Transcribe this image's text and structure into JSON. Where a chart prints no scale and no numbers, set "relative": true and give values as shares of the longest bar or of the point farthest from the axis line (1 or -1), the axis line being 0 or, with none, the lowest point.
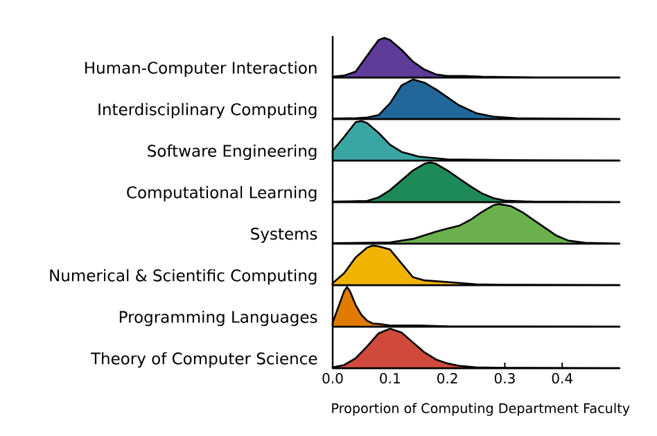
{
  "chart_data": [
    {
      "type": "area",
      "relative": true,
      "ylabel": "Human-Computer Interaction",
      "color": "#5e3c99",
      "xlim": [
        0,
        0.5
      ],
      "tick_labels": false,
      "x": [
        0,
        0.02,
        0.04,
        0.06,
        0.08,
        0.09,
        0.1,
        0.12,
        0.14,
        0.16,
        0.18,
        0.2,
        0.23,
        0.26,
        0.3,
        0.35,
        0.4,
        0.5
      ],
      "values": [
        0.02,
        0.05,
        0.15,
        0.55,
        0.95,
        1,
        0.95,
        0.7,
        0.4,
        0.2,
        0.08,
        0.04,
        0.04,
        0.02,
        0.01,
        0,
        0,
        0
      ]
    },
    {
      "type": "area",
      "relative": true,
      "ylabel": "Interdisciplinary Computing",
      "color": "#21679a",
      "xlim": [
        0,
        0.5
      ],
      "tick_labels": false,
      "x": [
        0,
        0.04,
        0.06,
        0.08,
        0.1,
        0.12,
        0.14,
        0.16,
        0.18,
        0.2,
        0.22,
        0.25,
        0.28,
        0.32,
        0.4,
        0.5
      ],
      "values": [
        0.01,
        0.02,
        0.04,
        0.1,
        0.4,
        0.85,
        1,
        0.92,
        0.75,
        0.55,
        0.35,
        0.15,
        0.06,
        0.02,
        0.01,
        0
      ]
    },
    {
      "type": "area",
      "relative": true,
      "ylabel": "Software Engineering",
      "color": "#3aa6a3",
      "xlim": [
        0,
        0.5
      ],
      "tick_labels": false,
      "x": [
        0,
        0.02,
        0.04,
        0.05,
        0.06,
        0.08,
        0.1,
        0.12,
        0.15,
        0.2,
        0.3,
        0.5
      ],
      "values": [
        0.25,
        0.6,
        0.97,
        1,
        0.95,
        0.7,
        0.4,
        0.22,
        0.1,
        0.03,
        0.01,
        0
      ]
    },
    {
      "type": "area",
      "relative": true,
      "ylabel": "Computational Learning",
      "color": "#1e8a5a",
      "xlim": [
        0,
        0.5
      ],
      "tick_labels": false,
      "x": [
        0,
        0.06,
        0.08,
        0.1,
        0.12,
        0.14,
        0.16,
        0.17,
        0.18,
        0.2,
        0.22,
        0.24,
        0.26,
        0.28,
        0.3,
        0.35,
        0.5
      ],
      "values": [
        0.01,
        0.03,
        0.12,
        0.3,
        0.55,
        0.8,
        0.97,
        1,
        0.97,
        0.8,
        0.6,
        0.4,
        0.22,
        0.1,
        0.04,
        0.01,
        0
      ]
    },
    {
      "type": "area",
      "relative": true,
      "ylabel": "Systems",
      "color": "#6ab04c",
      "xlim": [
        0,
        0.5
      ],
      "tick_labels": false,
      "x": [
        0,
        0.1,
        0.14,
        0.18,
        0.2,
        0.22,
        0.24,
        0.26,
        0.28,
        0.29,
        0.31,
        0.33,
        0.35,
        0.37,
        0.39,
        0.41,
        0.44,
        0.5
      ],
      "values": [
        0.01,
        0.03,
        0.12,
        0.3,
        0.38,
        0.45,
        0.6,
        0.8,
        0.97,
        1,
        0.95,
        0.8,
        0.6,
        0.4,
        0.2,
        0.08,
        0.02,
        0
      ]
    },
    {
      "type": "area",
      "relative": true,
      "ylabel": "Numerical & Scientific Computing",
      "color": "#f0b400",
      "xlim": [
        0,
        0.5
      ],
      "tick_labels": false,
      "x": [
        0,
        0.02,
        0.04,
        0.06,
        0.07,
        0.08,
        0.1,
        0.12,
        0.14,
        0.16,
        0.2,
        0.25,
        0.3,
        0.5
      ],
      "values": [
        0.05,
        0.3,
        0.7,
        0.95,
        1,
        0.98,
        0.9,
        0.55,
        0.2,
        0.12,
        0.08,
        0.02,
        0.01,
        0
      ]
    },
    {
      "type": "area",
      "relative": true,
      "ylabel": "Programming Languages",
      "color": "#e07b00",
      "xlim": [
        0,
        0.5
      ],
      "tick_labels": false,
      "x": [
        0,
        0.01,
        0.02,
        0.025,
        0.03,
        0.04,
        0.05,
        0.06,
        0.07,
        0.08,
        0.1,
        0.15,
        0.2,
        0.5
      ],
      "values": [
        0.1,
        0.5,
        0.9,
        1,
        0.9,
        0.55,
        0.3,
        0.15,
        0.08,
        0.07,
        0.03,
        0.03,
        0.01,
        0
      ]
    },
    {
      "type": "area",
      "relative": true,
      "ylabel": "Theory of Computer Science",
      "color": "#d04a3c",
      "xlim": [
        0,
        0.5
      ],
      "tick_labels": "x",
      "xticks": [
        {
          "value": 0,
          "label": "0.0"
        },
        0.1,
        0.2,
        0.3,
        0.4
      ],
      "xlabel": "Proportion of Computing Department Faculty",
      "x": [
        0,
        0.02,
        0.04,
        0.06,
        0.08,
        0.1,
        0.12,
        0.14,
        0.16,
        0.18,
        0.2,
        0.22,
        0.25,
        0.3,
        0.5
      ],
      "values": [
        0.02,
        0.08,
        0.25,
        0.55,
        0.88,
        1,
        0.9,
        0.65,
        0.4,
        0.22,
        0.12,
        0.06,
        0.02,
        0.01,
        0
      ]
    }
  ]
}
